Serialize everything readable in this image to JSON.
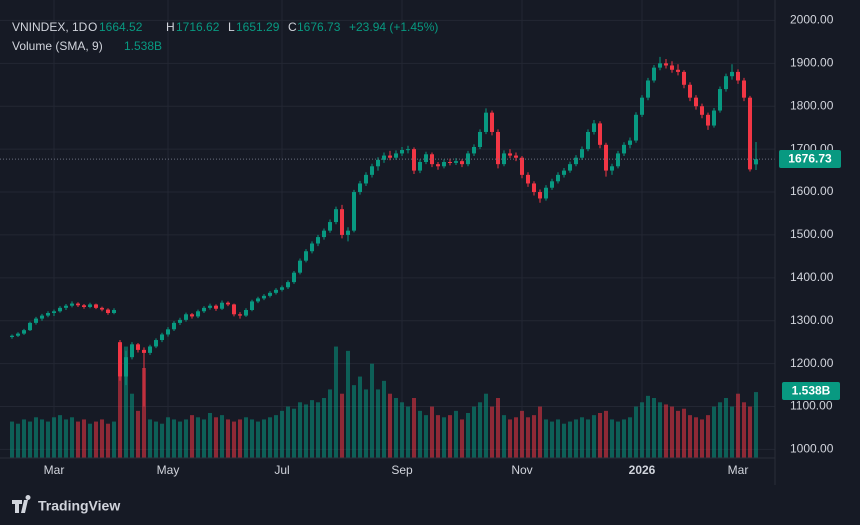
{
  "header": {
    "symbol": "VNINDEX, 1D",
    "open_key": "O",
    "open": "1664.52",
    "high_key": "H",
    "high": "1716.62",
    "low_key": "L",
    "low": "1651.29",
    "close_key": "C",
    "close": "1676.73",
    "change": "+23.94 (+1.45%)",
    "volume_title": "Volume (SMA, 9)",
    "volume_sma_label": "1.538B"
  },
  "brand": "TradingView",
  "chart_data": {
    "type": "candlestick",
    "up_color": "#089981",
    "down_color": "#f23645",
    "grid": true,
    "ylim": [
      980,
      2015
    ],
    "yticks": [
      {
        "value": 1000,
        "label": "1000.00"
      },
      {
        "value": 1100,
        "label": "1100.00"
      },
      {
        "value": 1200,
        "label": "1200.00"
      },
      {
        "value": 1300,
        "label": "1300.00"
      },
      {
        "value": 1400,
        "label": "1400.00"
      },
      {
        "value": 1500,
        "label": "1500.00"
      },
      {
        "value": 1600,
        "label": "1600.00"
      },
      {
        "value": 1700,
        "label": "1700.00"
      },
      {
        "value": 1800,
        "label": "1800.00"
      },
      {
        "value": 1900,
        "label": "1900.00"
      },
      {
        "value": 2000,
        "label": "2000.00"
      }
    ],
    "xticks": [
      {
        "value": 7,
        "label": "Mar"
      },
      {
        "value": 26,
        "label": "May"
      },
      {
        "value": 45,
        "label": "Jul"
      },
      {
        "value": 65,
        "label": "Sep"
      },
      {
        "value": 85,
        "label": "Nov"
      },
      {
        "value": 105,
        "label": "2026"
      },
      {
        "value": 121,
        "label": "Mar"
      }
    ],
    "volume_lim": [
      0,
      3.5
    ],
    "candles": [
      [
        1262,
        1268,
        1258,
        1265
      ],
      [
        1265,
        1273,
        1262,
        1270
      ],
      [
        1270,
        1281,
        1267,
        1278
      ],
      [
        1278,
        1298,
        1276,
        1295
      ],
      [
        1295,
        1309,
        1291,
        1305
      ],
      [
        1305,
        1316,
        1300,
        1312
      ],
      [
        1312,
        1322,
        1308,
        1318
      ],
      [
        1318,
        1326,
        1311,
        1322
      ],
      [
        1322,
        1334,
        1319,
        1330
      ],
      [
        1330,
        1339,
        1325,
        1335
      ],
      [
        1335,
        1345,
        1331,
        1340
      ],
      [
        1340,
        1343,
        1332,
        1336
      ],
      [
        1336,
        1339,
        1328,
        1332
      ],
      [
        1332,
        1342,
        1329,
        1338
      ],
      [
        1338,
        1340,
        1327,
        1330
      ],
      [
        1330,
        1333,
        1322,
        1326
      ],
      [
        1326,
        1329,
        1314,
        1318
      ],
      [
        1318,
        1329,
        1315,
        1325
      ],
      [
        1250,
        1255,
        1160,
        1170
      ],
      [
        1170,
        1230,
        1150,
        1215
      ],
      [
        1215,
        1250,
        1210,
        1245
      ],
      [
        1245,
        1248,
        1226,
        1232
      ],
      [
        1232,
        1238,
        1100,
        1225
      ],
      [
        1225,
        1244,
        1220,
        1240
      ],
      [
        1240,
        1259,
        1236,
        1255
      ],
      [
        1255,
        1272,
        1250,
        1268
      ],
      [
        1268,
        1285,
        1263,
        1280
      ],
      [
        1280,
        1299,
        1276,
        1295
      ],
      [
        1295,
        1307,
        1290,
        1302
      ],
      [
        1302,
        1319,
        1298,
        1315
      ],
      [
        1315,
        1318,
        1305,
        1310
      ],
      [
        1310,
        1326,
        1306,
        1322
      ],
      [
        1322,
        1334,
        1318,
        1330
      ],
      [
        1330,
        1340,
        1326,
        1335
      ],
      [
        1335,
        1338,
        1323,
        1328
      ],
      [
        1328,
        1347,
        1325,
        1342
      ],
      [
        1342,
        1345,
        1334,
        1338
      ],
      [
        1338,
        1340,
        1310,
        1315
      ],
      [
        1315,
        1320,
        1305,
        1312
      ],
      [
        1312,
        1329,
        1309,
        1325
      ],
      [
        1325,
        1349,
        1322,
        1345
      ],
      [
        1345,
        1356,
        1341,
        1352
      ],
      [
        1352,
        1362,
        1348,
        1358
      ],
      [
        1358,
        1369,
        1354,
        1365
      ],
      [
        1365,
        1376,
        1361,
        1372
      ],
      [
        1372,
        1382,
        1368,
        1378
      ],
      [
        1378,
        1394,
        1374,
        1390
      ],
      [
        1390,
        1416,
        1386,
        1412
      ],
      [
        1412,
        1445,
        1408,
        1440
      ],
      [
        1440,
        1467,
        1436,
        1462
      ],
      [
        1462,
        1485,
        1457,
        1480
      ],
      [
        1480,
        1500,
        1474,
        1495
      ],
      [
        1495,
        1515,
        1489,
        1510
      ],
      [
        1510,
        1536,
        1505,
        1530
      ],
      [
        1530,
        1566,
        1525,
        1560
      ],
      [
        1560,
        1570,
        1492,
        1500
      ],
      [
        1500,
        1518,
        1485,
        1510
      ],
      [
        1510,
        1605,
        1506,
        1600
      ],
      [
        1600,
        1626,
        1594,
        1620
      ],
      [
        1620,
        1646,
        1614,
        1640
      ],
      [
        1640,
        1666,
        1634,
        1660
      ],
      [
        1660,
        1681,
        1650,
        1675
      ],
      [
        1675,
        1692,
        1668,
        1685
      ],
      [
        1685,
        1696,
        1674,
        1680
      ],
      [
        1680,
        1697,
        1675,
        1690
      ],
      [
        1690,
        1705,
        1684,
        1698
      ],
      [
        1698,
        1708,
        1690,
        1700
      ],
      [
        1700,
        1704,
        1642,
        1650
      ],
      [
        1650,
        1676,
        1644,
        1670
      ],
      [
        1670,
        1694,
        1665,
        1688
      ],
      [
        1688,
        1692,
        1658,
        1665
      ],
      [
        1665,
        1670,
        1652,
        1660
      ],
      [
        1660,
        1676,
        1655,
        1670
      ],
      [
        1670,
        1678,
        1662,
        1668
      ],
      [
        1668,
        1679,
        1663,
        1672
      ],
      [
        1672,
        1676,
        1658,
        1665
      ],
      [
        1665,
        1696,
        1660,
        1690
      ],
      [
        1690,
        1711,
        1684,
        1705
      ],
      [
        1705,
        1746,
        1700,
        1740
      ],
      [
        1740,
        1795,
        1735,
        1785
      ],
      [
        1785,
        1790,
        1732,
        1740
      ],
      [
        1740,
        1746,
        1655,
        1665
      ],
      [
        1665,
        1697,
        1660,
        1690
      ],
      [
        1690,
        1700,
        1679,
        1685
      ],
      [
        1685,
        1692,
        1672,
        1680
      ],
      [
        1680,
        1684,
        1632,
        1640
      ],
      [
        1640,
        1646,
        1612,
        1620
      ],
      [
        1620,
        1625,
        1592,
        1600
      ],
      [
        1600,
        1606,
        1575,
        1585
      ],
      [
        1585,
        1616,
        1580,
        1610
      ],
      [
        1610,
        1631,
        1605,
        1625
      ],
      [
        1625,
        1646,
        1620,
        1640
      ],
      [
        1640,
        1656,
        1634,
        1650
      ],
      [
        1650,
        1671,
        1645,
        1665
      ],
      [
        1665,
        1686,
        1660,
        1680
      ],
      [
        1680,
        1706,
        1675,
        1700
      ],
      [
        1700,
        1746,
        1695,
        1740
      ],
      [
        1740,
        1768,
        1734,
        1760
      ],
      [
        1760,
        1765,
        1702,
        1710
      ],
      [
        1710,
        1715,
        1636,
        1650
      ],
      [
        1650,
        1666,
        1640,
        1660
      ],
      [
        1660,
        1696,
        1655,
        1690
      ],
      [
        1690,
        1716,
        1684,
        1710
      ],
      [
        1710,
        1727,
        1702,
        1720
      ],
      [
        1720,
        1786,
        1715,
        1780
      ],
      [
        1780,
        1826,
        1775,
        1820
      ],
      [
        1820,
        1866,
        1814,
        1860
      ],
      [
        1860,
        1896,
        1855,
        1890
      ],
      [
        1890,
        1915,
        1884,
        1900
      ],
      [
        1900,
        1910,
        1888,
        1895
      ],
      [
        1895,
        1905,
        1878,
        1885
      ],
      [
        1885,
        1898,
        1872,
        1880
      ],
      [
        1880,
        1884,
        1842,
        1850
      ],
      [
        1850,
        1856,
        1812,
        1820
      ],
      [
        1820,
        1826,
        1792,
        1800
      ],
      [
        1800,
        1806,
        1772,
        1780
      ],
      [
        1780,
        1785,
        1745,
        1755
      ],
      [
        1755,
        1796,
        1750,
        1790
      ],
      [
        1790,
        1846,
        1785,
        1840
      ],
      [
        1840,
        1876,
        1834,
        1870
      ],
      [
        1870,
        1898,
        1862,
        1880
      ],
      [
        1880,
        1886,
        1852,
        1860
      ],
      [
        1860,
        1866,
        1812,
        1820
      ],
      [
        1820,
        1824,
        1648,
        1652.79
      ],
      [
        1664.52,
        1716.62,
        1651.29,
        1676.73
      ]
    ],
    "volumes": [
      0.85,
      0.8,
      0.9,
      0.85,
      0.95,
      0.9,
      0.85,
      0.95,
      1.0,
      0.9,
      0.95,
      0.85,
      0.9,
      0.8,
      0.85,
      0.9,
      0.8,
      0.85,
      1.9,
      2.6,
      1.5,
      1.1,
      2.1,
      0.9,
      0.85,
      0.8,
      0.95,
      0.9,
      0.85,
      0.9,
      1.0,
      0.95,
      0.9,
      1.05,
      0.95,
      1.0,
      0.9,
      0.85,
      0.9,
      0.95,
      0.9,
      0.85,
      0.9,
      0.95,
      1.0,
      1.1,
      1.2,
      1.15,
      1.3,
      1.25,
      1.35,
      1.3,
      1.4,
      1.6,
      2.6,
      1.5,
      2.5,
      1.7,
      1.9,
      1.6,
      2.2,
      1.6,
      1.8,
      1.5,
      1.4,
      1.3,
      1.2,
      1.4,
      1.1,
      1.0,
      1.2,
      1.0,
      0.95,
      1.0,
      1.1,
      0.9,
      1.05,
      1.2,
      1.3,
      1.5,
      1.2,
      1.4,
      1.0,
      0.9,
      0.95,
      1.1,
      0.95,
      1.0,
      1.2,
      0.9,
      0.85,
      0.9,
      0.8,
      0.85,
      0.9,
      0.95,
      0.9,
      1.0,
      1.05,
      1.1,
      0.9,
      0.85,
      0.9,
      0.95,
      1.2,
      1.3,
      1.45,
      1.4,
      1.3,
      1.25,
      1.2,
      1.1,
      1.15,
      1.0,
      0.95,
      0.9,
      1.0,
      1.2,
      1.3,
      1.4,
      1.2,
      1.5,
      1.3,
      1.2,
      1.538
    ]
  }
}
